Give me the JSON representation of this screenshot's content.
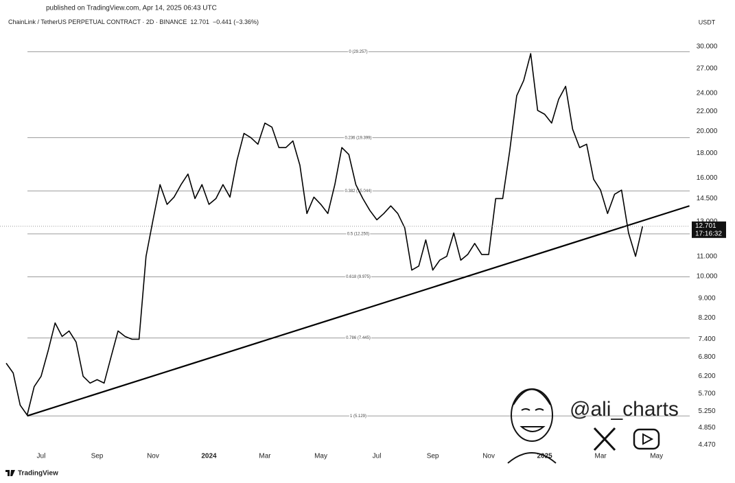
{
  "published": "published on TradingView.com, Apr 14, 2025 06:43 UTC",
  "watermark": "@ali_charts",
  "footer": "TradingView",
  "chart_data": {
    "type": "line",
    "title": "ChainLink / TetherUS PERPETUAL CONTRACT · 2D · BINANCE",
    "last_price": 12.701,
    "change": "−0.441 (−3.36%)",
    "countdown": "17:16:32",
    "currency": "USDT",
    "log_scale": true,
    "grid": false,
    "categories": [
      null,
      null,
      null,
      null,
      null,
      "Jul",
      null,
      null,
      null,
      null,
      null,
      null,
      null,
      "Sep",
      null,
      null,
      null,
      null,
      null,
      null,
      null,
      "Nov",
      null,
      null,
      null,
      null,
      null,
      null,
      null,
      "2024",
      null,
      null,
      null,
      null,
      null,
      null,
      null,
      "Mar",
      null,
      null,
      null,
      null,
      null,
      null,
      null,
      "May",
      null,
      null,
      null,
      null,
      null,
      null,
      null,
      "Jul",
      null,
      null,
      null,
      null,
      null,
      null,
      null,
      "Sep",
      null,
      null,
      null,
      null,
      null,
      null,
      null,
      "Nov",
      null,
      null,
      null,
      null,
      null,
      null,
      null,
      "2025",
      null,
      null,
      null,
      null,
      null,
      null,
      null,
      "Mar",
      null,
      null,
      null,
      null,
      null,
      null,
      null,
      "May"
    ],
    "series": [
      {
        "name": "LINKUSDT",
        "color": "#000000",
        "values": [
          6.6,
          6.3,
          5.4,
          5.15,
          5.9,
          6.2,
          7.0,
          8.0,
          7.5,
          7.7,
          7.3,
          6.2,
          6.0,
          6.1,
          6.0,
          6.8,
          7.7,
          7.5,
          7.4,
          7.4,
          11.0,
          13.1,
          15.5,
          14.1,
          14.6,
          15.5,
          16.3,
          14.5,
          15.5,
          14.1,
          14.5,
          15.5,
          14.6,
          17.4,
          19.8,
          19.4,
          18.8,
          20.8,
          20.4,
          18.5,
          18.5,
          19.1,
          17.0,
          13.5,
          14.6,
          14.1,
          13.5,
          15.5,
          18.5,
          17.9,
          15.5,
          14.5,
          13.7,
          13.1,
          13.5,
          14.0,
          13.5,
          12.6,
          10.3,
          10.5,
          11.9,
          10.3,
          10.8,
          11.0,
          12.3,
          10.8,
          11.1,
          11.7,
          11.1,
          11.1,
          14.5,
          14.5,
          18.2,
          23.7,
          25.5,
          29.0,
          22.1,
          21.7,
          20.8,
          23.3,
          24.8,
          20.2,
          18.5,
          18.8,
          15.9,
          15.1,
          13.5,
          14.8,
          15.1,
          12.3,
          11.0,
          12.701,
          null,
          null
        ]
      }
    ],
    "ylim": [
      4.3,
      31.8
    ],
    "yticks": [
      {
        "value": 4.47,
        "label": "4.470"
      },
      {
        "value": 4.85,
        "label": "4.850"
      },
      {
        "value": 5.25,
        "label": "5.250"
      },
      {
        "value": 5.7,
        "label": "5.700"
      },
      {
        "value": 6.2,
        "label": "6.200"
      },
      {
        "value": 6.8,
        "label": "6.800"
      },
      {
        "value": 7.4,
        "label": "7.400"
      },
      {
        "value": 8.2,
        "label": "8.200"
      },
      {
        "value": 9,
        "label": "9.000"
      },
      {
        "value": 10,
        "label": "10.000"
      },
      {
        "value": 11,
        "label": "11.000"
      },
      {
        "value": 13,
        "label": "13.000"
      },
      {
        "value": 14.5,
        "label": "14.500"
      },
      {
        "value": 16,
        "label": "16.000"
      },
      {
        "value": 18,
        "label": "18.000"
      },
      {
        "value": 20,
        "label": "20.000"
      },
      {
        "value": 22,
        "label": "22.000"
      },
      {
        "value": 24,
        "label": "24.000"
      },
      {
        "value": 27,
        "label": "27.000"
      },
      {
        "value": 30,
        "label": "30.000"
      }
    ],
    "fib_levels": [
      {
        "value": 29.257,
        "label": "0 (29.257)"
      },
      {
        "value": 19.399,
        "label": "0.236 (19.399)"
      },
      {
        "value": 15.044,
        "label": "0.382 (15.044)"
      },
      {
        "value": 12.25,
        "label": "0.5 (12.250)"
      },
      {
        "value": 9.975,
        "label": "0.618 (9.975)"
      },
      {
        "value": 7.445,
        "label": "0.786 (7.445)"
      },
      {
        "value": 5.129,
        "label": "1 (5.129)"
      }
    ],
    "trendline": {
      "start": [
        3,
        5.13
      ],
      "end": [
        97.7,
        14.0
      ]
    }
  }
}
